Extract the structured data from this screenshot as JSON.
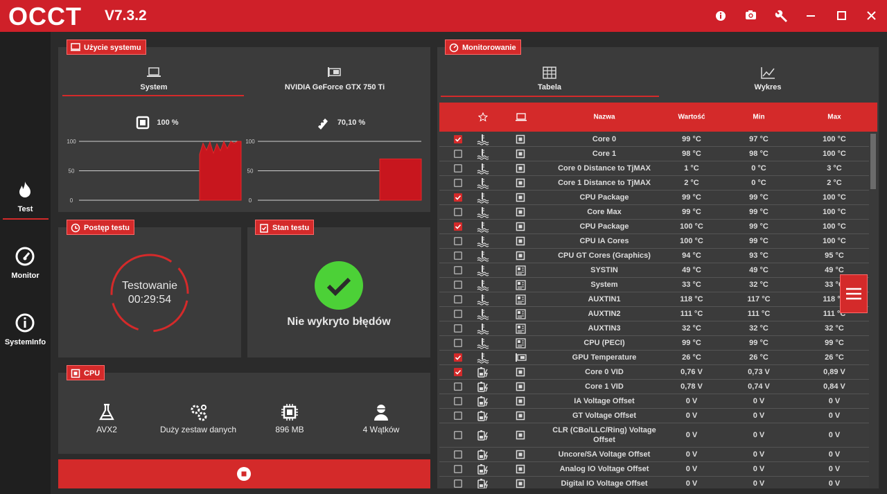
{
  "header": {
    "logo": "OCCT",
    "version": "V7.3.2"
  },
  "sidebar": {
    "items": [
      "Test",
      "Monitor",
      "SystemInfo"
    ],
    "active": 0
  },
  "usage": {
    "title": "Użycie systemu",
    "tabs": [
      "System",
      "NVIDIA GeForce GTX 750 Ti"
    ],
    "active_tab": 0,
    "charts": [
      {
        "label": "100 %",
        "ylim": [
          0,
          100
        ],
        "yticks": [
          100,
          50,
          0
        ],
        "values": [
          78,
          97,
          85,
          99,
          80,
          96,
          84,
          100,
          88,
          100,
          97,
          100,
          100
        ]
      },
      {
        "label": "70,10 %",
        "ylim": [
          0,
          100
        ],
        "yticks": [
          100,
          50,
          0
        ],
        "values": [
          70.1,
          70.1,
          70.1,
          70.1,
          70.1,
          70.1,
          70.1,
          70.1,
          70.1,
          70.1,
          70.1,
          70.1,
          70.1
        ]
      }
    ]
  },
  "progress": {
    "title": "Postęp testu",
    "status": "Testowanie",
    "elapsed": "00:29:54"
  },
  "test_state": {
    "title": "Stan testu",
    "message": "Nie wykryto błędów"
  },
  "cpu": {
    "title": "CPU",
    "items": [
      "AVX2",
      "Duży zestaw danych",
      "896 MB",
      "4 Wątków"
    ]
  },
  "monitoring": {
    "title": "Monitorowanie",
    "tabs": [
      "Tabela",
      "Wykres"
    ],
    "active_tab": 0,
    "columns": [
      "Nazwa",
      "Wartość",
      "Min",
      "Max"
    ],
    "rows": [
      {
        "checked": true,
        "name": "Core 0",
        "value": "99 °C",
        "min": "97 °C",
        "max": "100 °C"
      },
      {
        "checked": false,
        "name": "Core 1",
        "value": "98 °C",
        "min": "98 °C",
        "max": "100 °C"
      },
      {
        "checked": false,
        "name": "Core 0 Distance to TjMAX",
        "value": "1 °C",
        "min": "0 °C",
        "max": "3 °C"
      },
      {
        "checked": false,
        "name": "Core 1 Distance to TjMAX",
        "value": "2 °C",
        "min": "0 °C",
        "max": "2 °C"
      },
      {
        "checked": true,
        "name": "CPU Package",
        "value": "99 °C",
        "min": "99 °C",
        "max": "100 °C"
      },
      {
        "checked": false,
        "name": "Core Max",
        "value": "99 °C",
        "min": "99 °C",
        "max": "100 °C"
      },
      {
        "checked": true,
        "name": "CPU Package",
        "value": "100 °C",
        "min": "99 °C",
        "max": "100 °C"
      },
      {
        "checked": false,
        "name": "CPU IA Cores",
        "value": "100 °C",
        "min": "99 °C",
        "max": "100 °C"
      },
      {
        "checked": false,
        "name": "CPU GT Cores (Graphics)",
        "value": "94 °C",
        "min": "93 °C",
        "max": "95 °C"
      },
      {
        "checked": false,
        "name": "SYSTIN",
        "value": "49 °C",
        "min": "49 °C",
        "max": "49 °C"
      },
      {
        "checked": false,
        "name": "System",
        "value": "33 °C",
        "min": "32 °C",
        "max": "33 °C"
      },
      {
        "checked": false,
        "name": "AUXTIN1",
        "value": "118 °C",
        "min": "117 °C",
        "max": "118 °C"
      },
      {
        "checked": false,
        "name": "AUXTIN2",
        "value": "111 °C",
        "min": "111 °C",
        "max": "111 °C"
      },
      {
        "checked": false,
        "name": "AUXTIN3",
        "value": "32 °C",
        "min": "32 °C",
        "max": "32 °C"
      },
      {
        "checked": false,
        "name": "CPU (PECI)",
        "value": "99 °C",
        "min": "99 °C",
        "max": "99 °C"
      },
      {
        "checked": true,
        "name": "GPU Temperature",
        "value": "26 °C",
        "min": "26 °C",
        "max": "26 °C"
      },
      {
        "checked": true,
        "name": "Core 0 VID",
        "value": "0,76 V",
        "min": "0,73 V",
        "max": "0,89 V"
      },
      {
        "checked": false,
        "name": "Core 1 VID",
        "value": "0,78 V",
        "min": "0,74 V",
        "max": "0,84 V"
      },
      {
        "checked": false,
        "name": "IA Voltage Offset",
        "value": "0 V",
        "min": "0 V",
        "max": "0 V"
      },
      {
        "checked": false,
        "name": "GT Voltage Offset",
        "value": "0 V",
        "min": "0 V",
        "max": "0 V"
      },
      {
        "checked": false,
        "name": "CLR (CBo/LLC/Ring) Voltage Offset",
        "value": "0 V",
        "min": "0 V",
        "max": "0 V"
      },
      {
        "checked": false,
        "name": "Uncore/SA Voltage Offset",
        "value": "0 V",
        "min": "0 V",
        "max": "0 V"
      },
      {
        "checked": false,
        "name": "Analog IO Voltage Offset",
        "value": "0 V",
        "min": "0 V",
        "max": "0 V"
      },
      {
        "checked": false,
        "name": "Digital IO Voltage Offset",
        "value": "0 V",
        "min": "0 V",
        "max": "0 V"
      }
    ]
  }
}
